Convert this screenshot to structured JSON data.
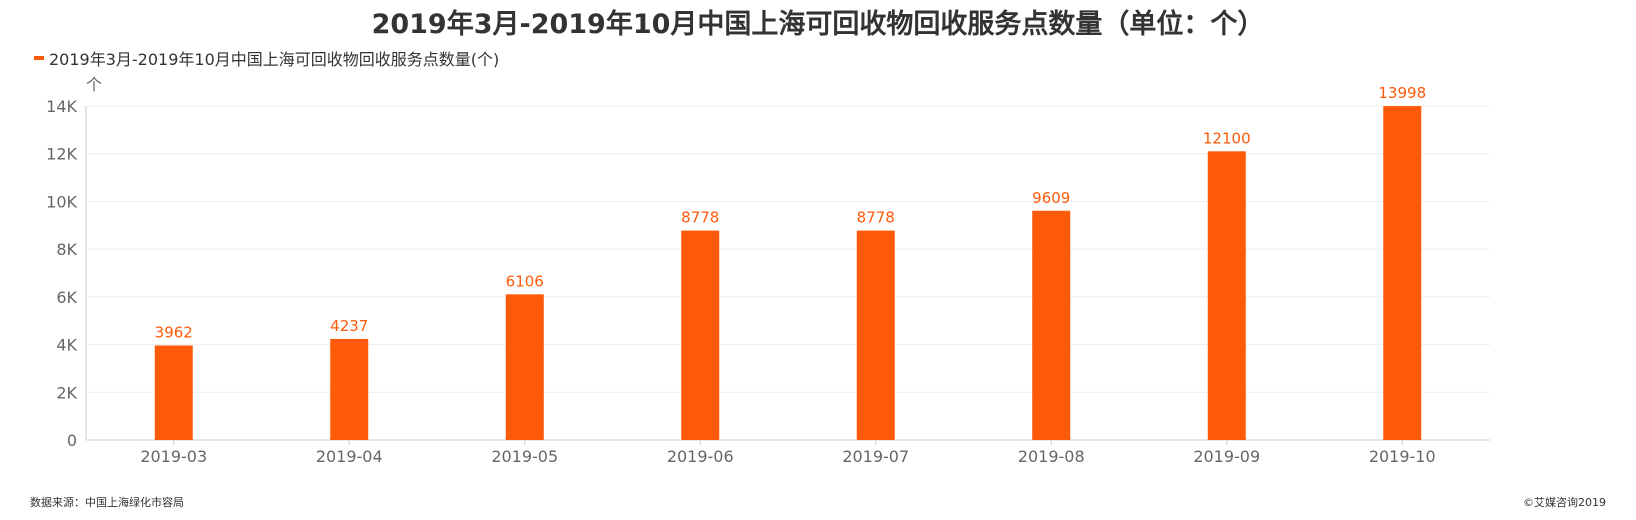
{
  "title": "2019年3月-2019年10月中国上海可回收物回收服务点数量（单位：个）",
  "legend": {
    "label": "2019年3月-2019年10月中国上海可回收物回收服务点数量(个)"
  },
  "source": "数据来源：中国上海绿化市容局",
  "copyright": "©艾媒咨询2019",
  "colors": {
    "bar": "#FF5A0A",
    "label": "#FF5A0A",
    "grid": "#eeeeee",
    "axis": "#cccccc"
  },
  "chart_data": {
    "type": "bar",
    "title": "2019年3月-2019年10月中国上海可回收物回收服务点数量（单位：个）",
    "y_unit": "个",
    "categories": [
      "2019-03",
      "2019-04",
      "2019-05",
      "2019-06",
      "2019-07",
      "2019-08",
      "2019-09",
      "2019-10"
    ],
    "series": [
      {
        "name": "2019年3月-2019年10月中国上海可回收物回收服务点数量(个)",
        "values": [
          3962,
          4237,
          6106,
          8778,
          8778,
          9609,
          12100,
          13998
        ]
      }
    ],
    "ylim": [
      0,
      14000
    ],
    "yticks": [
      0,
      2000,
      4000,
      6000,
      8000,
      10000,
      12000,
      14000
    ],
    "ytick_labels": [
      "0",
      "2K",
      "4K",
      "6K",
      "8K",
      "10K",
      "12K",
      "14K"
    ],
    "grid": true,
    "legend_position": "top-left",
    "data_labels": true
  }
}
